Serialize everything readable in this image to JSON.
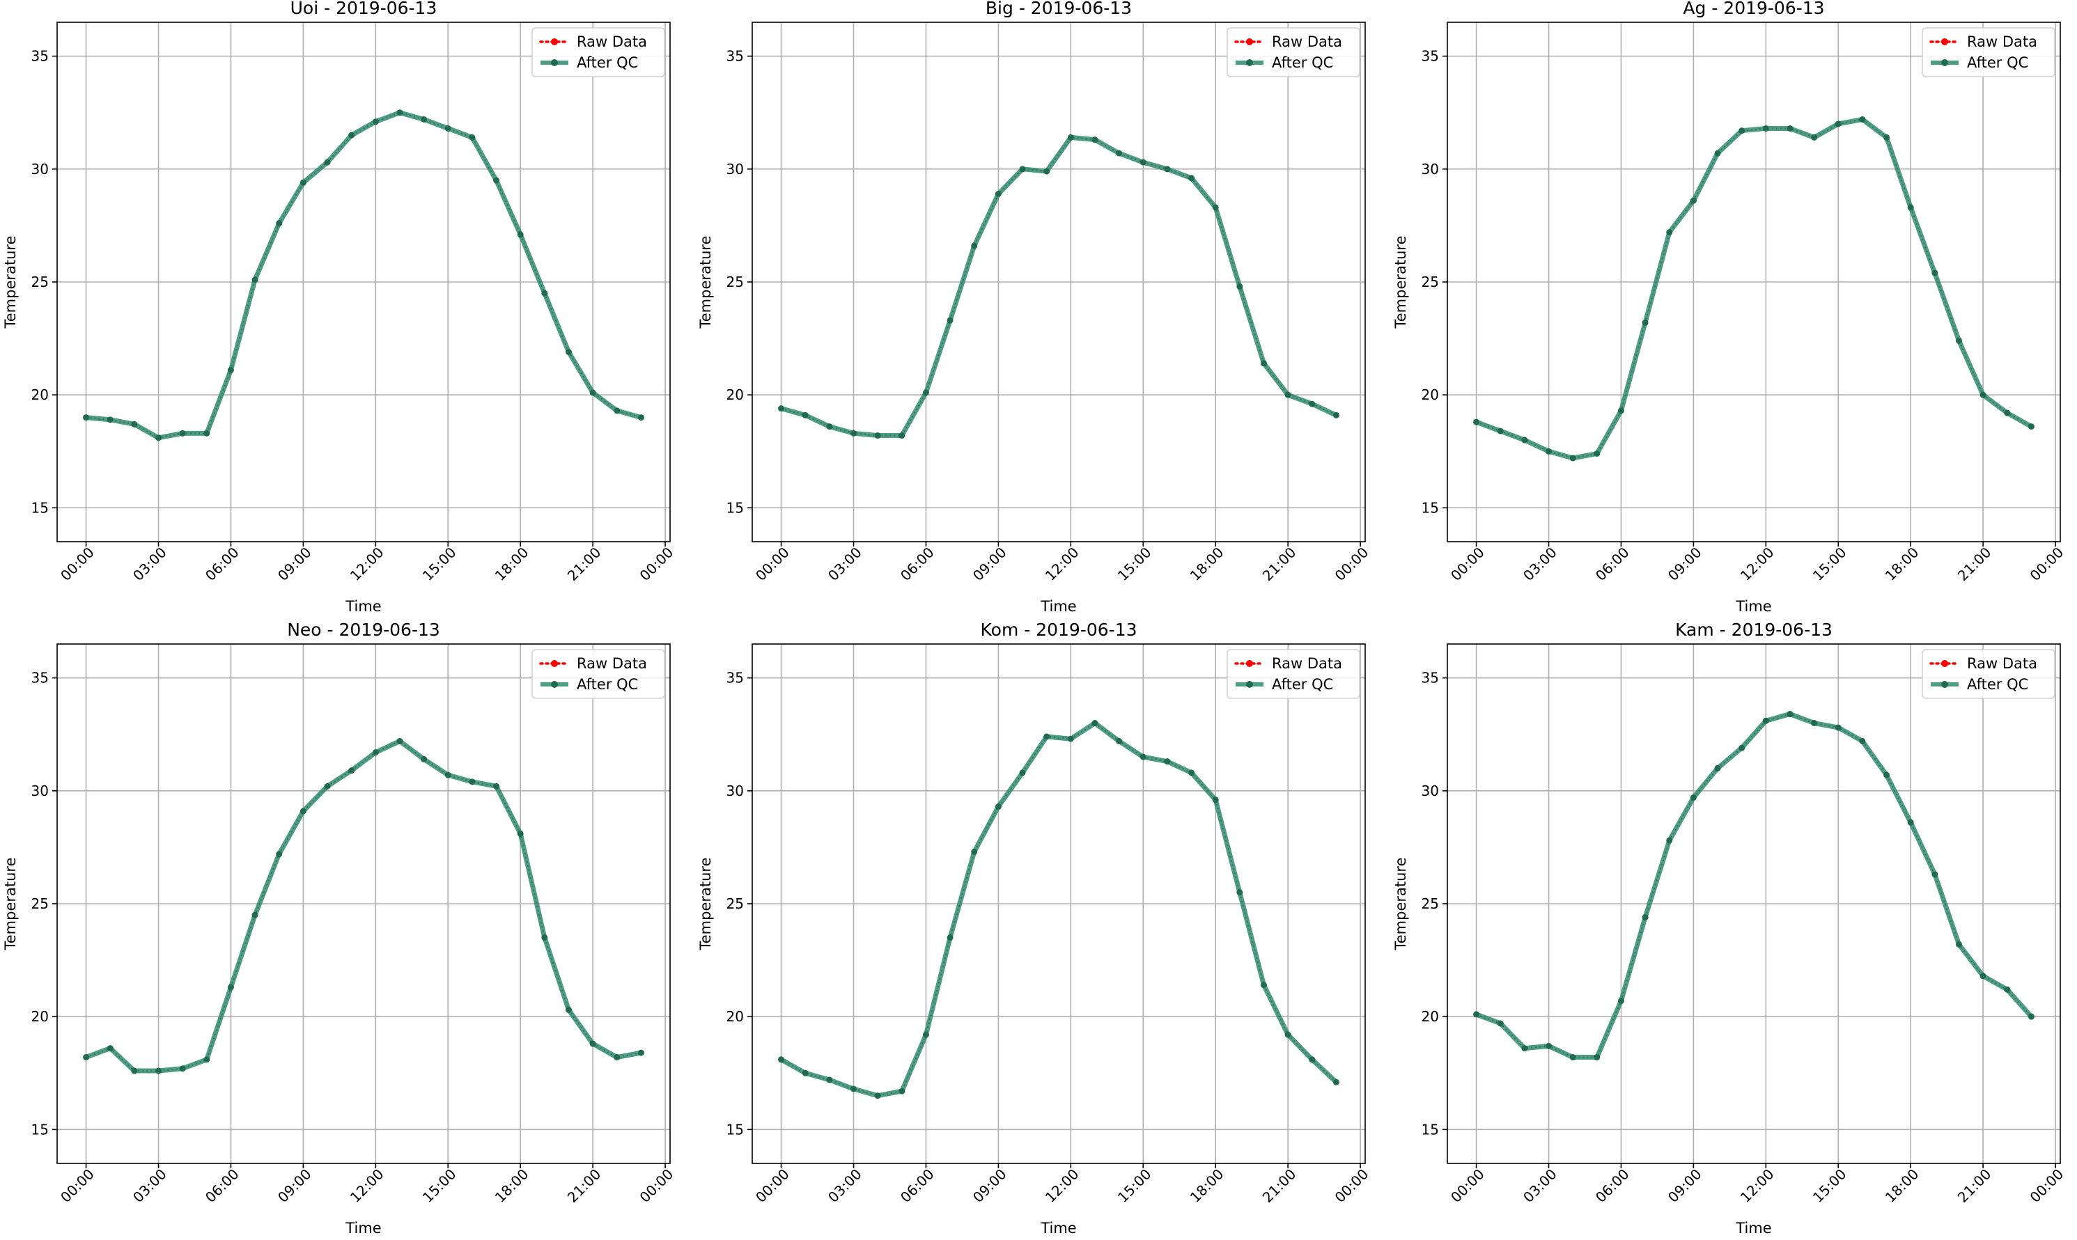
{
  "figure": {
    "colors": {
      "raw": "#ff0000",
      "qc": "#2e8b6e",
      "qc_marker": "#1f6b52",
      "grid": "#b0b0b0",
      "axes": "#000000",
      "legend_border": "#d0d0d0"
    }
  },
  "chart_data": [
    {
      "type": "line",
      "title": "Uoi - 2019-06-13",
      "xlabel": "Time",
      "ylabel": "Temperature",
      "x_ticks": [
        "00:00",
        "03:00",
        "06:00",
        "09:00",
        "12:00",
        "15:00",
        "18:00",
        "21:00",
        "00:00"
      ],
      "y_ticks": [
        "15",
        "20",
        "25",
        "30",
        "35"
      ],
      "ylim": [
        13.5,
        36.5
      ],
      "xlim_hours": [
        -1.2,
        24.2
      ],
      "grid": true,
      "legend_position": "top-right",
      "x_hours": [
        0,
        1,
        2,
        3,
        4,
        5,
        6,
        7,
        8,
        9,
        10,
        11,
        12,
        13,
        14,
        15,
        16,
        17,
        18,
        19,
        20,
        21,
        22,
        23
      ],
      "series": [
        {
          "name": "Raw Data",
          "style": "dotted-red",
          "values": [
            19.0,
            18.9,
            18.7,
            18.1,
            18.3,
            18.3,
            21.1,
            25.1,
            27.6,
            29.4,
            30.3,
            31.5,
            32.1,
            32.5,
            32.2,
            31.8,
            31.4,
            29.5,
            27.1,
            24.5,
            21.9,
            20.1,
            19.3,
            19.0
          ]
        },
        {
          "name": "After QC",
          "style": "solid-green",
          "values": [
            19.0,
            18.9,
            18.7,
            18.1,
            18.3,
            18.3,
            21.1,
            25.1,
            27.6,
            29.4,
            30.3,
            31.5,
            32.1,
            32.5,
            32.2,
            31.8,
            31.4,
            29.5,
            27.1,
            24.5,
            21.9,
            20.1,
            19.3,
            19.0
          ]
        }
      ]
    },
    {
      "type": "line",
      "title": "Big - 2019-06-13",
      "xlabel": "Time",
      "ylabel": "Temperature",
      "x_ticks": [
        "00:00",
        "03:00",
        "06:00",
        "09:00",
        "12:00",
        "15:00",
        "18:00",
        "21:00",
        "00:00"
      ],
      "y_ticks": [
        "15",
        "20",
        "25",
        "30",
        "35"
      ],
      "ylim": [
        13.5,
        36.5
      ],
      "xlim_hours": [
        -1.2,
        24.2
      ],
      "grid": true,
      "legend_position": "top-right",
      "x_hours": [
        0,
        1,
        2,
        3,
        4,
        5,
        6,
        7,
        8,
        9,
        10,
        11,
        12,
        13,
        14,
        15,
        16,
        17,
        18,
        19,
        20,
        21,
        22,
        23
      ],
      "series": [
        {
          "name": "Raw Data",
          "style": "dotted-red",
          "values": [
            19.4,
            19.1,
            18.6,
            18.3,
            18.2,
            18.2,
            20.1,
            23.3,
            26.6,
            28.9,
            30.0,
            29.9,
            31.4,
            31.3,
            30.7,
            30.3,
            30.0,
            29.6,
            28.3,
            24.8,
            21.4,
            20.0,
            19.6,
            19.1
          ]
        },
        {
          "name": "After QC",
          "style": "solid-green",
          "values": [
            19.4,
            19.1,
            18.6,
            18.3,
            18.2,
            18.2,
            20.1,
            23.3,
            26.6,
            28.9,
            30.0,
            29.9,
            31.4,
            31.3,
            30.7,
            30.3,
            30.0,
            29.6,
            28.3,
            24.8,
            21.4,
            20.0,
            19.6,
            19.1
          ]
        }
      ]
    },
    {
      "type": "line",
      "title": "Ag - 2019-06-13",
      "xlabel": "Time",
      "ylabel": "Temperature",
      "x_ticks": [
        "00:00",
        "03:00",
        "06:00",
        "09:00",
        "12:00",
        "15:00",
        "18:00",
        "21:00",
        "00:00"
      ],
      "y_ticks": [
        "15",
        "20",
        "25",
        "30",
        "35"
      ],
      "ylim": [
        13.5,
        36.5
      ],
      "xlim_hours": [
        -1.2,
        24.2
      ],
      "grid": true,
      "legend_position": "top-right",
      "x_hours": [
        0,
        1,
        2,
        3,
        4,
        5,
        6,
        7,
        8,
        9,
        10,
        11,
        12,
        13,
        14,
        15,
        16,
        17,
        18,
        19,
        20,
        21,
        22,
        23
      ],
      "series": [
        {
          "name": "Raw Data",
          "style": "dotted-red",
          "values": [
            18.8,
            18.4,
            18.0,
            17.5,
            17.2,
            17.4,
            19.3,
            23.2,
            27.2,
            28.6,
            30.7,
            31.7,
            31.8,
            31.8,
            31.4,
            32.0,
            32.2,
            31.4,
            28.3,
            25.4,
            22.4,
            20.0,
            19.2,
            18.6
          ]
        },
        {
          "name": "After QC",
          "style": "solid-green",
          "values": [
            18.8,
            18.4,
            18.0,
            17.5,
            17.2,
            17.4,
            19.3,
            23.2,
            27.2,
            28.6,
            30.7,
            31.7,
            31.8,
            31.8,
            31.4,
            32.0,
            32.2,
            31.4,
            28.3,
            25.4,
            22.4,
            20.0,
            19.2,
            18.6
          ]
        }
      ]
    },
    {
      "type": "line",
      "title": "Neo - 2019-06-13",
      "xlabel": "Time",
      "ylabel": "Temperature",
      "x_ticks": [
        "00:00",
        "03:00",
        "06:00",
        "09:00",
        "12:00",
        "15:00",
        "18:00",
        "21:00",
        "00:00"
      ],
      "y_ticks": [
        "15",
        "20",
        "25",
        "30",
        "35"
      ],
      "ylim": [
        13.5,
        36.5
      ],
      "xlim_hours": [
        -1.2,
        24.2
      ],
      "grid": true,
      "legend_position": "top-right",
      "x_hours": [
        0,
        1,
        2,
        3,
        4,
        5,
        6,
        7,
        8,
        9,
        10,
        11,
        12,
        13,
        14,
        15,
        16,
        17,
        18,
        19,
        20,
        21,
        22,
        23
      ],
      "series": [
        {
          "name": "Raw Data",
          "style": "dotted-red",
          "values": [
            18.2,
            18.6,
            17.6,
            17.6,
            17.7,
            18.1,
            21.3,
            24.5,
            27.2,
            29.1,
            30.2,
            30.9,
            31.7,
            32.2,
            31.4,
            30.7,
            30.4,
            30.2,
            28.1,
            23.5,
            20.3,
            18.8,
            18.2,
            18.4
          ]
        },
        {
          "name": "After QC",
          "style": "solid-green",
          "values": [
            18.2,
            18.6,
            17.6,
            17.6,
            17.7,
            18.1,
            21.3,
            24.5,
            27.2,
            29.1,
            30.2,
            30.9,
            31.7,
            32.2,
            31.4,
            30.7,
            30.4,
            30.2,
            28.1,
            23.5,
            20.3,
            18.8,
            18.2,
            18.4
          ]
        }
      ]
    },
    {
      "type": "line",
      "title": "Kom - 2019-06-13",
      "xlabel": "Time",
      "ylabel": "Temperature",
      "x_ticks": [
        "00:00",
        "03:00",
        "06:00",
        "09:00",
        "12:00",
        "15:00",
        "18:00",
        "21:00",
        "00:00"
      ],
      "y_ticks": [
        "15",
        "20",
        "25",
        "30",
        "35"
      ],
      "ylim": [
        13.5,
        36.5
      ],
      "xlim_hours": [
        -1.2,
        24.2
      ],
      "grid": true,
      "legend_position": "top-right",
      "x_hours": [
        0,
        1,
        2,
        3,
        4,
        5,
        6,
        7,
        8,
        9,
        10,
        11,
        12,
        13,
        14,
        15,
        16,
        17,
        18,
        19,
        20,
        21,
        22,
        23
      ],
      "series": [
        {
          "name": "Raw Data",
          "style": "dotted-red",
          "values": [
            18.1,
            17.5,
            17.2,
            16.8,
            16.5,
            16.7,
            19.2,
            23.5,
            27.3,
            29.3,
            30.8,
            32.4,
            32.3,
            33.0,
            32.2,
            31.5,
            31.3,
            30.8,
            29.6,
            25.5,
            21.4,
            19.2,
            18.1,
            17.1
          ]
        },
        {
          "name": "After QC",
          "style": "solid-green",
          "values": [
            18.1,
            17.5,
            17.2,
            16.8,
            16.5,
            16.7,
            19.2,
            23.5,
            27.3,
            29.3,
            30.8,
            32.4,
            32.3,
            33.0,
            32.2,
            31.5,
            31.3,
            30.8,
            29.6,
            25.5,
            21.4,
            19.2,
            18.1,
            17.1
          ]
        }
      ]
    },
    {
      "type": "line",
      "title": "Kam - 2019-06-13",
      "xlabel": "Time",
      "ylabel": "Temperature",
      "x_ticks": [
        "00:00",
        "03:00",
        "06:00",
        "09:00",
        "12:00",
        "15:00",
        "18:00",
        "21:00",
        "00:00"
      ],
      "y_ticks": [
        "15",
        "20",
        "25",
        "30",
        "35"
      ],
      "ylim": [
        13.5,
        36.5
      ],
      "xlim_hours": [
        -1.2,
        24.2
      ],
      "grid": true,
      "legend_position": "top-right",
      "x_hours": [
        0,
        1,
        2,
        3,
        4,
        5,
        6,
        7,
        8,
        9,
        10,
        11,
        12,
        13,
        14,
        15,
        16,
        17,
        18,
        19,
        20,
        21,
        22,
        23
      ],
      "series": [
        {
          "name": "Raw Data",
          "style": "dotted-red",
          "values": [
            20.1,
            19.7,
            18.6,
            18.7,
            18.2,
            18.2,
            20.7,
            24.4,
            27.8,
            29.7,
            31.0,
            31.9,
            33.1,
            33.4,
            33.0,
            32.8,
            32.2,
            30.7,
            28.6,
            26.3,
            23.2,
            21.8,
            21.2,
            20.0
          ]
        },
        {
          "name": "After QC",
          "style": "solid-green",
          "values": [
            20.1,
            19.7,
            18.6,
            18.7,
            18.2,
            18.2,
            20.7,
            24.4,
            27.8,
            29.7,
            31.0,
            31.9,
            33.1,
            33.4,
            33.0,
            32.8,
            32.2,
            30.7,
            28.6,
            26.3,
            23.2,
            21.8,
            21.2,
            20.0
          ]
        }
      ]
    }
  ]
}
